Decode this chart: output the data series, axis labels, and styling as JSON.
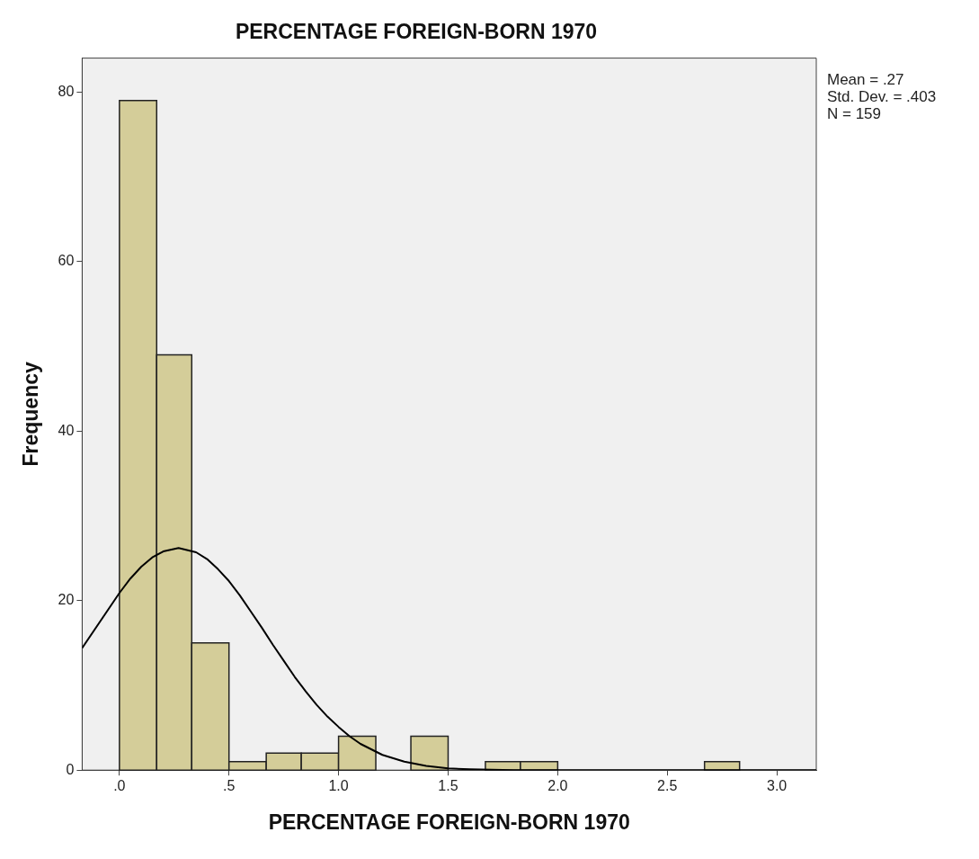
{
  "chart_data": {
    "type": "histogram",
    "title": "PERCENTAGE FOREIGN-BORN 1970",
    "xlabel": "PERCENTAGE FOREIGN-BORN 1970",
    "ylabel": "Frequency",
    "bins": [
      0,
      0.17,
      0.33,
      0.5,
      0.67,
      0.83,
      1.0,
      1.17,
      1.33,
      1.5,
      1.67,
      1.83,
      2.0,
      2.67,
      2.83
    ],
    "values": [
      79,
      49,
      15,
      1,
      2,
      2,
      4,
      0,
      4,
      0,
      1,
      1,
      0,
      1
    ],
    "color": "#d4cd99",
    "series": [
      {
        "type": "line",
        "color": "#000000",
        "x": [
          -0.17,
          0,
          0.05,
          0.1,
          0.15,
          0.2,
          0.27,
          0.35,
          0.4,
          0.45,
          0.5,
          0.55,
          0.6,
          0.65,
          0.7,
          0.75,
          0.8,
          0.85,
          0.9,
          0.95,
          1.0,
          1.05,
          1.1,
          1.2,
          1.3,
          1.4,
          1.5,
          1.6,
          1.8,
          2.0,
          2.5,
          3.18
        ],
        "values": [
          14.4,
          20.9,
          22.6,
          24.0,
          25.1,
          25.8,
          26.2,
          25.7,
          24.9,
          23.7,
          22.3,
          20.6,
          18.7,
          16.8,
          14.8,
          12.9,
          11.0,
          9.3,
          7.7,
          6.3,
          5.1,
          4.0,
          3.1,
          1.8,
          1.0,
          0.5,
          0.2,
          0.1,
          0,
          0,
          0,
          0
        ]
      }
    ],
    "marker": "none",
    "xlim": [
      -0.17,
      3.18
    ],
    "xticks": [
      {
        "value": 0,
        "label": ".0"
      },
      {
        "value": 0.5,
        "label": ".5"
      },
      {
        "value": 1.0,
        "label": "1.0"
      },
      {
        "value": 1.5,
        "label": "1.5"
      },
      {
        "value": 2.0,
        "label": "2.0"
      },
      {
        "value": 2.5,
        "label": "2.5"
      },
      {
        "value": 3.0,
        "label": "3.0"
      }
    ],
    "ylim": [
      0,
      84
    ],
    "yticks": [
      0,
      20,
      40,
      60,
      80
    ],
    "annotations": [
      "Mean = .27",
      "Std. Dev. = .403",
      "N = 159"
    ]
  }
}
